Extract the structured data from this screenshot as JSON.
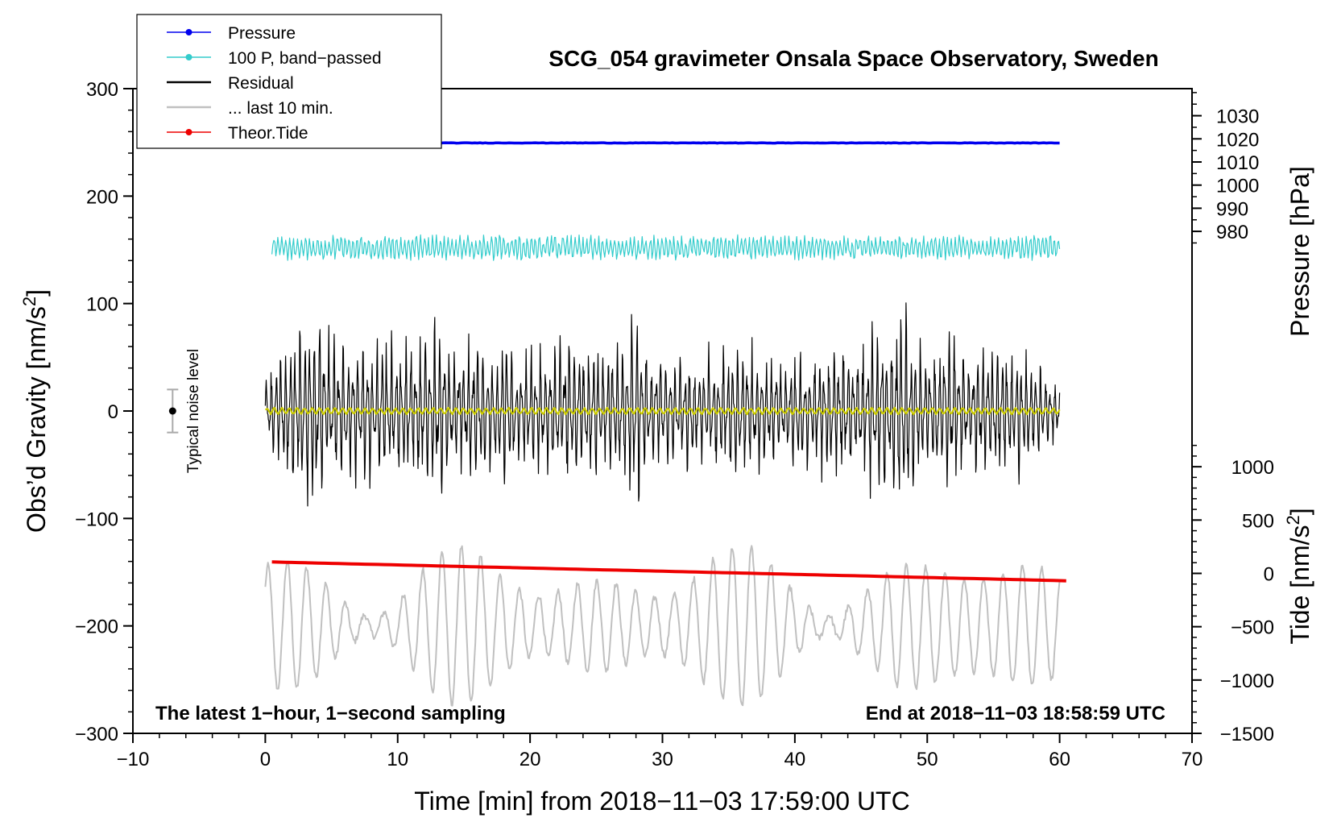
{
  "chart_data": {
    "type": "line",
    "title": "SCG_054 gravimeter Onsala Space Observatory, Sweden",
    "xlabel": "Time [min] from 2018−11−03 17:59:00 UTC",
    "ylabel_left": "Obs’d Gravity [nm/s",
    "ylabel_left_sup": "2",
    "ylabel_left_close": "]",
    "ylabel_right_pressure": "Pressure [hPa]",
    "ylabel_right_tide": "Tide [nm/s",
    "ylabel_right_tide_sup": "2",
    "ylabel_right_tide_close": "]",
    "xlim": [
      -10,
      70
    ],
    "ylim": [
      -300,
      300
    ],
    "x_ticks": [
      -10,
      0,
      10,
      20,
      30,
      40,
      50,
      60,
      70
    ],
    "x_tick_labels": [
      "−10",
      "0",
      "10",
      "20",
      "30",
      "40",
      "50",
      "60",
      "70"
    ],
    "y_ticks": [
      300,
      200,
      100,
      0,
      -100,
      -200,
      -300
    ],
    "y_tick_labels": [
      "300",
      "200",
      "100",
      "0",
      "−100",
      "−200",
      "−300"
    ],
    "pressure_ticks": [
      1030,
      1020,
      1010,
      1000,
      990,
      980
    ],
    "pressure_tick_labels": [
      "1030",
      "1020",
      "1010",
      "1000",
      "990",
      "980"
    ],
    "pressure_axis": {
      "value_at_top": 1041.7,
      "hpa_per_gravity_unit": 0.4645
    },
    "tide_ticks": [
      1000,
      500,
      0,
      -500,
      -1000,
      -1500
    ],
    "tide_tick_labels": [
      "1000",
      "500",
      "0",
      "−500",
      "−1000",
      "−1500"
    ],
    "tide_axis": {
      "value_at_bottom": -1500,
      "nms2_per_gravity_unit": 10.075
    },
    "annotation_left": "The latest 1−hour, 1−second sampling",
    "annotation_right": "End at 2018−11−03 18:58:59 UTC",
    "noise_label": "Typical noise level",
    "noise_bar": {
      "x": -7,
      "center": 0,
      "half_range": 20
    },
    "legend": [
      {
        "label": "Pressure",
        "color": "#0000ee",
        "marker": true
      },
      {
        "label": "100 P, band−passed",
        "color": "#33cccc",
        "marker": true
      },
      {
        "label": "Residual",
        "color": "#000000",
        "marker": false
      },
      {
        "label": "... last 10 min.",
        "color": "#c0c0c0",
        "marker": false
      },
      {
        "label": "Theor.Tide",
        "color": "#ee0000",
        "marker": true
      }
    ],
    "series": [
      {
        "name": "Pressure",
        "color": "#0000ee",
        "y_start": 249.5,
        "y_end": 249.5,
        "noise": 0.4,
        "x_start": 0.3,
        "x_end": 60
      },
      {
        "name": "100 P, band-passed",
        "color": "#33cccc",
        "center": 152,
        "amplitude": 10,
        "x_start": 0.5,
        "x_end": 60
      },
      {
        "name": "Residual",
        "color": "#000000",
        "center": 0,
        "x_start": 0,
        "x_end": 60,
        "envelope_x": [
          0,
          1,
          2,
          3,
          4,
          5,
          6,
          7,
          8,
          9,
          10,
          11,
          12,
          13,
          14,
          15,
          16,
          17,
          18,
          19,
          20,
          21,
          22,
          23,
          24,
          25,
          26,
          27,
          28,
          29,
          30,
          31,
          32,
          33,
          34,
          35,
          36,
          37,
          38,
          39,
          40,
          41,
          42,
          43,
          44,
          45,
          46,
          47,
          48,
          49,
          50,
          51,
          52,
          53,
          54,
          55,
          56,
          57,
          58,
          59,
          60
        ],
        "envelope_y": [
          35,
          60,
          95,
          110,
          115,
          85,
          70,
          80,
          80,
          90,
          70,
          85,
          95,
          95,
          80,
          70,
          85,
          60,
          90,
          60,
          75,
          70,
          80,
          85,
          75,
          80,
          70,
          85,
          110,
          70,
          60,
          55,
          65,
          60,
          70,
          70,
          75,
          80,
          60,
          60,
          70,
          60,
          75,
          70,
          70,
          70,
          100,
          80,
          130,
          80,
          65,
          80,
          90,
          65,
          70,
          75,
          70,
          70,
          55,
          45,
          30
        ]
      },
      {
        "name": "Residual smoothed",
        "color": "#cccc00",
        "center": 0,
        "amplitude": 2.5,
        "x_start": 0,
        "x_end": 60
      },
      {
        "name": "... last 10 min.",
        "color": "#c0c0c0",
        "center": -200,
        "amplitude": 55,
        "x_start": 0,
        "x_end": 60
      },
      {
        "name": "Theor.Tide",
        "color": "#ee0000",
        "y_start": -140.5,
        "y_end": -158,
        "x_start": 0.5,
        "x_end": 60.5
      }
    ]
  }
}
